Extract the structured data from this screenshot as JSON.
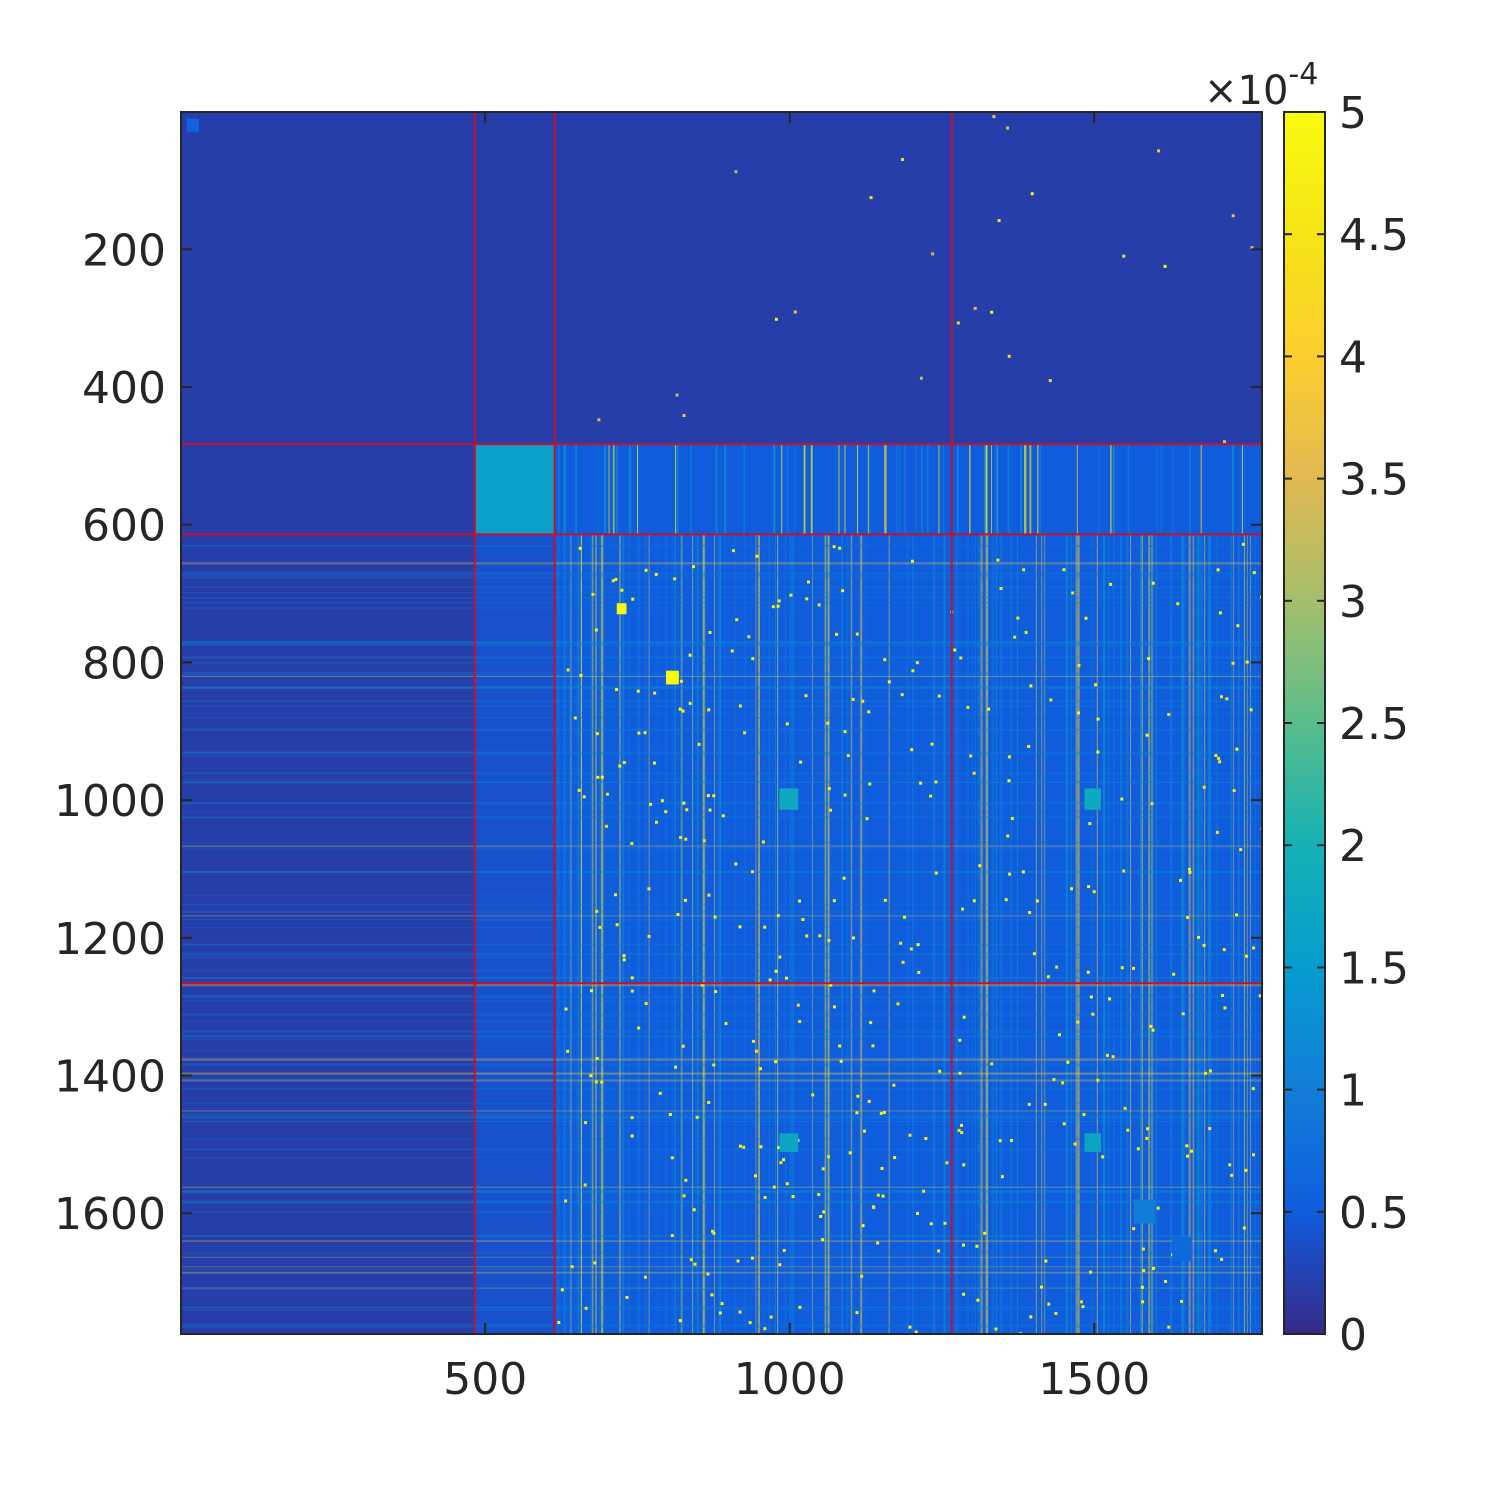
{
  "chart_data": {
    "type": "heatmap",
    "title": "",
    "xlabel": "",
    "ylabel": "",
    "matrix_size": 1775,
    "xlim": [
      1,
      1775
    ],
    "ylim": [
      1,
      1775
    ],
    "x_ticks": [
      500,
      1000,
      1500
    ],
    "y_ticks": [
      200,
      400,
      600,
      800,
      1000,
      1200,
      1400,
      1600
    ],
    "colorbar": {
      "colormap": "parula",
      "range": [
        0,
        0.0005
      ],
      "ticks": [
        0,
        0.5,
        1,
        1.5,
        2,
        2.5,
        3,
        3.5,
        4,
        4.5,
        5
      ],
      "tick_labels": [
        "0",
        "0.5",
        "1",
        "1.5",
        "2",
        "2.5",
        "3",
        "3.5",
        "4",
        "4.5",
        "5"
      ],
      "multiplier_prefix": "×10",
      "multiplier_exponent": "-4"
    },
    "block_boundaries": [
      483,
      614,
      1266
    ],
    "boundary_color": "#c8102e",
    "background_value": 2e-05,
    "blocks": [
      {
        "rows": [
          1,
          483
        ],
        "cols": [
          1,
          483
        ],
        "level": 2e-05
      },
      {
        "rows": [
          483,
          614
        ],
        "cols": [
          483,
          614
        ],
        "level": 0.00016
      },
      {
        "rows": [
          483,
          614
        ],
        "cols": [
          614,
          1775
        ],
        "level": 5e-05
      },
      {
        "rows": [
          614,
          1775
        ],
        "cols": [
          483,
          614
        ],
        "level": 4e-05
      },
      {
        "rows": [
          614,
          1775
        ],
        "cols": [
          614,
          1775
        ],
        "level": 5e-05
      }
    ],
    "hot_squares": [
      {
        "rows": [
          714,
          730
        ],
        "cols": [
          716,
          732
        ],
        "value": 0.0005
      },
      {
        "rows": [
          812,
          832
        ],
        "cols": [
          797,
          818
        ],
        "value": 0.0005
      },
      {
        "rows": [
          983,
          1014
        ],
        "cols": [
          983,
          1014
        ],
        "value": 0.00018
      },
      {
        "rows": [
          983,
          1014
        ],
        "cols": [
          1484,
          1511
        ],
        "value": 0.00018
      },
      {
        "rows": [
          1484,
          1511
        ],
        "cols": [
          983,
          1014
        ],
        "value": 0.00017
      },
      {
        "rows": [
          1484,
          1511
        ],
        "cols": [
          1484,
          1511
        ],
        "value": 0.00017
      },
      {
        "rows": [
          1580,
          1615
        ],
        "cols": [
          1565,
          1600
        ],
        "value": 0.0001
      },
      {
        "rows": [
          1635,
          1670
        ],
        "cols": [
          1628,
          1660
        ],
        "value": 7e-05
      },
      {
        "rows": [
          10,
          30
        ],
        "cols": [
          10,
          30
        ],
        "value": 6e-05
      }
    ]
  }
}
